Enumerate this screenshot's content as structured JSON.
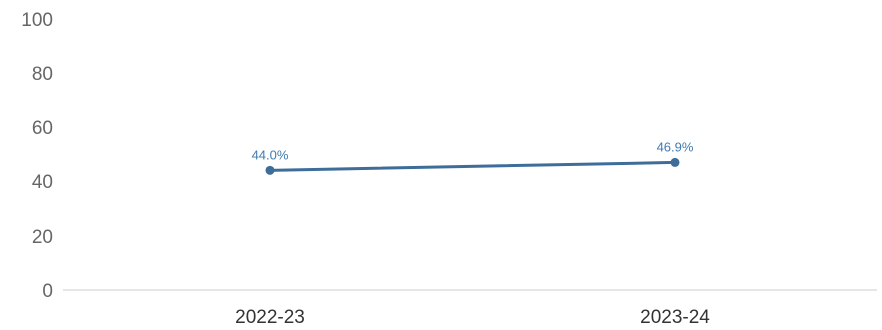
{
  "chart_data": {
    "type": "line",
    "categories": [
      "2022-23",
      "2023-24"
    ],
    "series": [
      {
        "values": [
          44.0,
          46.9
        ],
        "labels": [
          "44.0%",
          "46.9%"
        ],
        "color": "#3f6d99"
      }
    ],
    "yticks": [
      "0",
      "20",
      "40",
      "60",
      "80",
      "100"
    ],
    "ylim": [
      0,
      100
    ],
    "grid": false,
    "label_color": "#3f7bb0",
    "axis_color": "#cccccc"
  }
}
